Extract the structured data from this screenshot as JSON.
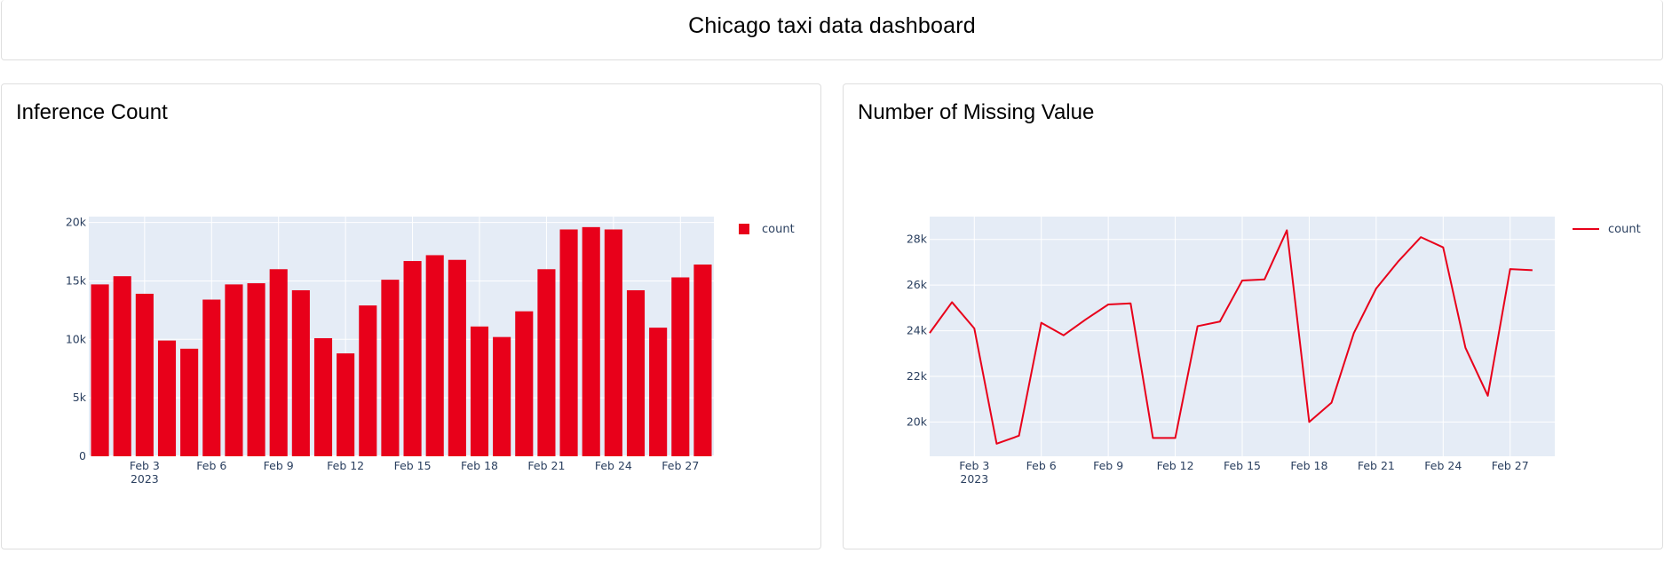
{
  "dashboard": {
    "title": "Chicago taxi data dashboard"
  },
  "colors": {
    "accent": "#e8001a",
    "plot_bg": "#e5ecf6",
    "grid": "#ffffff",
    "text": "#2a3f5f"
  },
  "chart_data": [
    {
      "type": "bar",
      "title": "Inference Count",
      "legend": {
        "label": "count",
        "placement": "top-right"
      },
      "x_start": "2023-02-01",
      "categories": [
        "Feb 1",
        "Feb 2",
        "Feb 3",
        "Feb 4",
        "Feb 5",
        "Feb 6",
        "Feb 7",
        "Feb 8",
        "Feb 9",
        "Feb 10",
        "Feb 11",
        "Feb 12",
        "Feb 13",
        "Feb 14",
        "Feb 15",
        "Feb 16",
        "Feb 17",
        "Feb 18",
        "Feb 19",
        "Feb 20",
        "Feb 21",
        "Feb 22",
        "Feb 23",
        "Feb 24",
        "Feb 25",
        "Feb 26",
        "Feb 27",
        "Feb 28"
      ],
      "values": [
        14700,
        15400,
        13900,
        9900,
        9200,
        13400,
        14700,
        14800,
        16000,
        14200,
        10100,
        8800,
        12900,
        15100,
        16700,
        17200,
        16800,
        11100,
        10200,
        12400,
        16000,
        19400,
        19600,
        19400,
        14200,
        11000,
        15300,
        16400
      ],
      "xlim": [
        0.5,
        28.5
      ],
      "ylim": [
        0,
        20500
      ],
      "yticks": [
        0,
        5000,
        10000,
        15000,
        20000
      ],
      "ytick_labels": [
        "0",
        "5k",
        "10k",
        "15k",
        "20k"
      ],
      "xtick_days": [
        3,
        6,
        9,
        12,
        15,
        18,
        21,
        24,
        27
      ],
      "xtick_labels": [
        "Feb 3",
        "Feb 6",
        "Feb 9",
        "Feb 12",
        "Feb 15",
        "Feb 18",
        "Feb 21",
        "Feb 24",
        "Feb 27"
      ],
      "year_label": "2023",
      "xlabel": "",
      "ylabel": "",
      "grid": true
    },
    {
      "type": "line",
      "title": "Number of Missing Value",
      "legend": {
        "label": "count",
        "placement": "top-right"
      },
      "x_start": "2023-02-01",
      "x": [
        1,
        2,
        3,
        4,
        5,
        6,
        7,
        8,
        9,
        10,
        11,
        12,
        13,
        14,
        15,
        16,
        17,
        18,
        19,
        20,
        21,
        22,
        23,
        24,
        25,
        26,
        27,
        28
      ],
      "values": [
        23900,
        25250,
        24100,
        19050,
        19400,
        24350,
        23800,
        24500,
        25150,
        25200,
        19300,
        19300,
        24200,
        24400,
        26200,
        26250,
        28400,
        20000,
        20850,
        23900,
        25850,
        27050,
        28100,
        27650,
        23250,
        21150,
        26700,
        26650
      ],
      "xlim": [
        1,
        29
      ],
      "ylim": [
        18500,
        29000
      ],
      "yticks": [
        20000,
        22000,
        24000,
        26000,
        28000
      ],
      "ytick_labels": [
        "20k",
        "22k",
        "24k",
        "26k",
        "28k"
      ],
      "xtick_days": [
        3,
        6,
        9,
        12,
        15,
        18,
        21,
        24,
        27
      ],
      "xtick_labels": [
        "Feb 3",
        "Feb 6",
        "Feb 9",
        "Feb 12",
        "Feb 15",
        "Feb 18",
        "Feb 21",
        "Feb 24",
        "Feb 27"
      ],
      "year_label": "2023",
      "xlabel": "",
      "ylabel": "",
      "grid": true
    }
  ]
}
